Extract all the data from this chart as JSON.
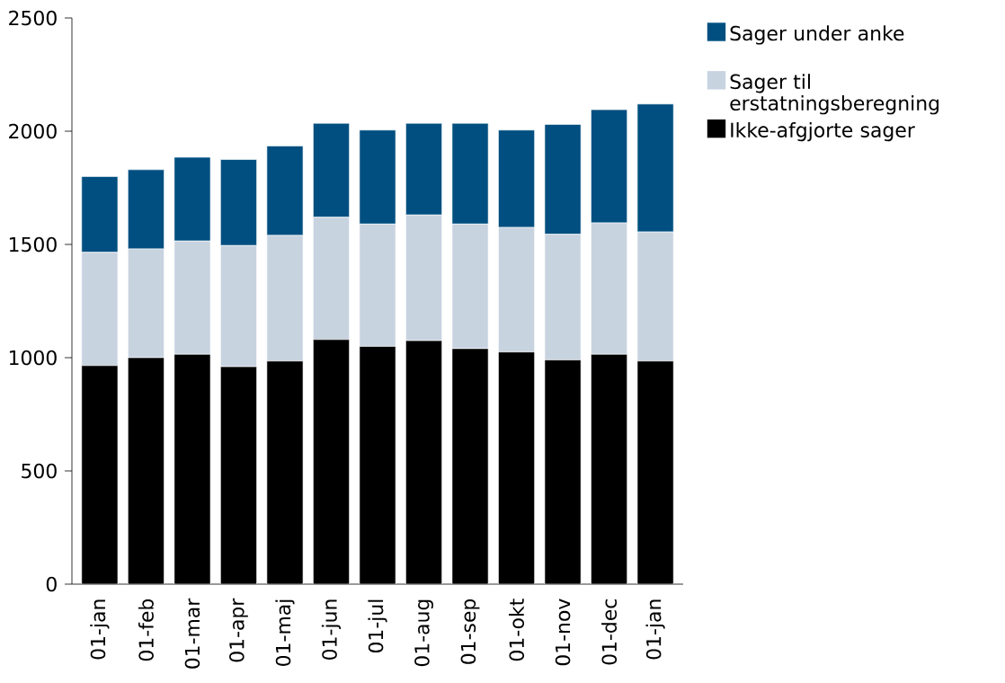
{
  "chart_data": {
    "type": "bar",
    "stacked": true,
    "categories": [
      "01-jan",
      "01-feb",
      "01-mar",
      "01-apr",
      "01-maj",
      "01-jun",
      "01-jul",
      "01-aug",
      "01-sep",
      "01-okt",
      "01-nov",
      "01-dec",
      "01-jan"
    ],
    "series": [
      {
        "name": "Ikke-afgjorte sager",
        "color": "#000000",
        "values": [
          965,
          1000,
          1015,
          960,
          985,
          1080,
          1050,
          1075,
          1040,
          1025,
          990,
          1015,
          985
        ]
      },
      {
        "name": "Sager til erstatningsberegning",
        "color": "#c8d3e0",
        "values": [
          500,
          480,
          500,
          535,
          555,
          540,
          540,
          555,
          550,
          550,
          555,
          580,
          570
        ]
      },
      {
        "name": "Sager under anke",
        "color": "#004f80",
        "values": [
          335,
          350,
          370,
          380,
          395,
          415,
          415,
          405,
          445,
          430,
          485,
          500,
          565
        ]
      }
    ],
    "ylim": [
      0,
      2500
    ],
    "yticks": [
      0,
      500,
      1000,
      1500,
      2000,
      2500
    ],
    "grid": false,
    "legend": "top right"
  }
}
